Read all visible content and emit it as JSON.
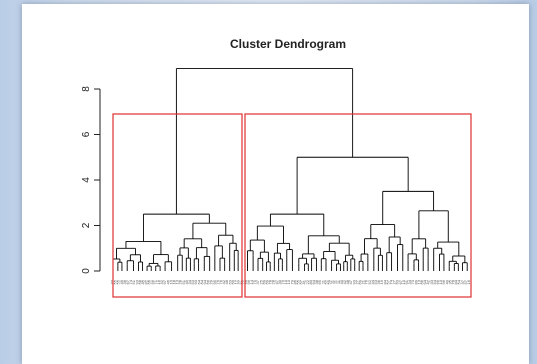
{
  "chart_data": {
    "type": "dendrogram",
    "title": "Cluster Dendrogram",
    "ylim": [
      0,
      9
    ],
    "yticks": [
      "0",
      "2",
      "4",
      "6",
      "8"
    ],
    "root_height": 8.9,
    "main_clusters": [
      {
        "height": 2.5,
        "subclusters": [
          1.3,
          2.1
        ]
      },
      {
        "height": 5.0,
        "subclusters": [
          2.5,
          3.5
        ]
      }
    ],
    "highlight_clusters": 2,
    "highlight_color": "#e03030",
    "line_color": "#000000"
  }
}
